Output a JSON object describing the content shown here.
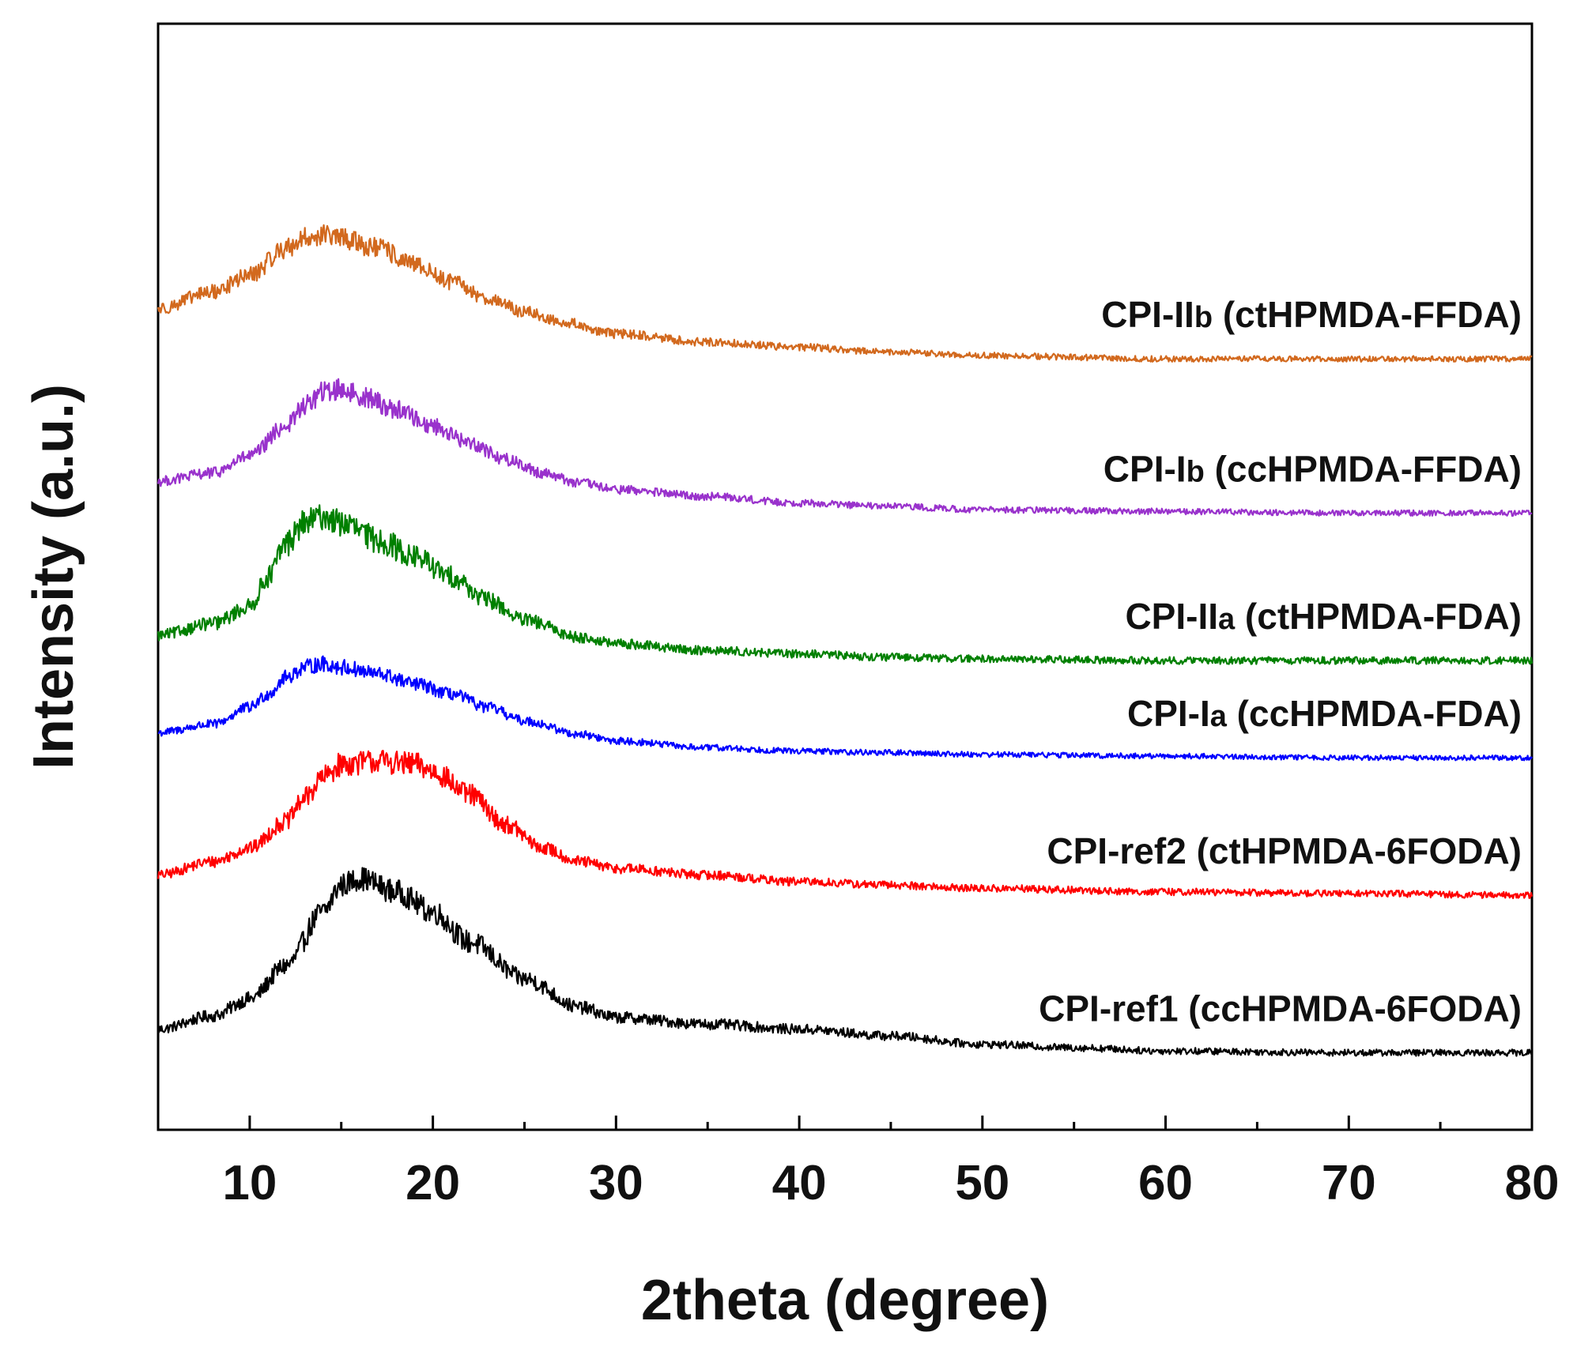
{
  "chart_data": {
    "type": "line",
    "title": "",
    "xlabel": "2theta (degree)",
    "ylabel": "Intensity (a.u.)",
    "xlim": [
      5,
      80
    ],
    "ylim": [
      0,
      6.6
    ],
    "xticks": [
      10,
      20,
      30,
      40,
      50,
      60,
      70,
      80
    ],
    "x_minor_step": 5,
    "grid": false,
    "y_tick_labels": false,
    "series": [
      {
        "name": "CPI-ref1 (ccHPMDA-6FODA)",
        "label_parts": [
          "CPI-ref1 (ccHPMDA-6FODA)"
        ],
        "color": "#000000",
        "noise": 0.09,
        "x": [
          5,
          8,
          10,
          12,
          14,
          15,
          16,
          18,
          20,
          22,
          25,
          28,
          30,
          35,
          40,
          45,
          50,
          55,
          60,
          70,
          80
        ],
        "y": [
          0.6,
          0.68,
          0.78,
          0.98,
          1.3,
          1.46,
          1.5,
          1.42,
          1.3,
          1.12,
          0.9,
          0.73,
          0.67,
          0.63,
          0.6,
          0.56,
          0.51,
          0.49,
          0.47,
          0.46,
          0.46
        ]
      },
      {
        "name": "CPI-ref2 (ctHPMDA-6FODA)",
        "label_parts": [
          "CPI-ref2 (ctHPMDA-6FODA)"
        ],
        "color": "#ff0000",
        "noise": 0.09,
        "x": [
          5,
          8,
          10,
          12,
          13,
          14,
          15,
          17,
          19,
          20,
          22,
          24,
          26,
          28,
          30,
          35,
          40,
          45,
          50,
          60,
          70,
          80
        ],
        "y": [
          1.52,
          1.6,
          1.68,
          1.84,
          1.98,
          2.1,
          2.18,
          2.2,
          2.18,
          2.14,
          2.0,
          1.82,
          1.68,
          1.6,
          1.56,
          1.52,
          1.48,
          1.46,
          1.44,
          1.42,
          1.41,
          1.4
        ]
      },
      {
        "name": "CPI-Ia (ccHPMDA-FDA)",
        "label_parts": [
          "CPI-I",
          "a",
          " (ccHPMDA-FDA)"
        ],
        "color": "#0000ff",
        "noise": 0.07,
        "x": [
          5,
          8,
          10,
          11,
          12,
          13,
          14,
          15,
          17,
          19,
          21,
          23,
          25,
          28,
          30,
          35,
          40,
          45,
          50,
          60,
          70,
          80
        ],
        "y": [
          2.37,
          2.42,
          2.52,
          2.6,
          2.7,
          2.76,
          2.78,
          2.76,
          2.72,
          2.66,
          2.6,
          2.52,
          2.44,
          2.36,
          2.32,
          2.28,
          2.26,
          2.25,
          2.24,
          2.23,
          2.22,
          2.22
        ]
      },
      {
        "name": "CPI-IIa (ctHPMDA-FDA)",
        "label_parts": [
          "CPI-II",
          "a",
          " (ctHPMDA-FDA)"
        ],
        "color": "#008000",
        "noise": 0.1,
        "x": [
          5,
          8,
          10,
          11,
          12,
          13,
          14,
          15,
          17,
          19,
          21,
          23,
          25,
          28,
          30,
          35,
          40,
          45,
          50,
          60,
          70,
          80
        ],
        "y": [
          2.95,
          3.02,
          3.12,
          3.3,
          3.5,
          3.62,
          3.66,
          3.62,
          3.52,
          3.42,
          3.3,
          3.16,
          3.04,
          2.94,
          2.9,
          2.86,
          2.84,
          2.82,
          2.81,
          2.8,
          2.8,
          2.8
        ]
      },
      {
        "name": "CPI-Ib (ccHPMDA-FFDA)",
        "label_parts": [
          "CPI-I",
          "b",
          " (ccHPMDA-FFDA)"
        ],
        "color": "#9932cc",
        "noise": 0.08,
        "x": [
          5,
          8,
          10,
          12,
          13,
          14,
          15,
          16,
          18,
          20,
          22,
          24,
          26,
          28,
          30,
          35,
          40,
          45,
          50,
          60,
          70,
          80
        ],
        "y": [
          3.87,
          3.92,
          4.02,
          4.2,
          4.32,
          4.4,
          4.42,
          4.38,
          4.3,
          4.2,
          4.1,
          4.0,
          3.92,
          3.86,
          3.82,
          3.78,
          3.74,
          3.72,
          3.7,
          3.69,
          3.68,
          3.68
        ]
      },
      {
        "name": "CPI-IIb (ctHPMDA-FFDA)",
        "label_parts": [
          "CPI-II",
          "b",
          " (ctHPMDA-FFDA)"
        ],
        "color": "#d2691e",
        "noise": 0.08,
        "x": [
          5,
          8,
          10,
          12,
          13,
          14,
          15,
          17,
          19,
          21,
          23,
          25,
          27,
          30,
          35,
          40,
          45,
          50,
          60,
          70,
          80
        ],
        "y": [
          4.9,
          5.0,
          5.1,
          5.26,
          5.32,
          5.34,
          5.32,
          5.26,
          5.16,
          5.06,
          4.96,
          4.88,
          4.82,
          4.75,
          4.7,
          4.67,
          4.64,
          4.62,
          4.6,
          4.6,
          4.6
        ]
      }
    ]
  }
}
